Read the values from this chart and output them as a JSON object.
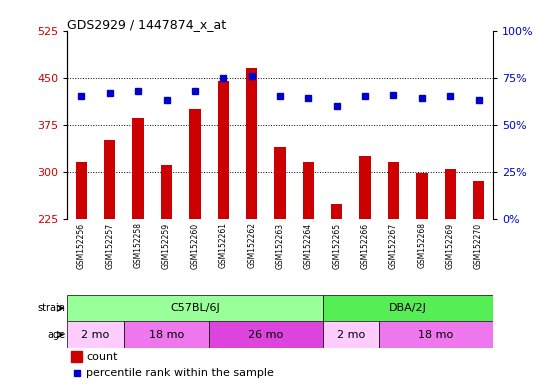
{
  "title": "GDS2929 / 1447874_x_at",
  "samples": [
    "GSM152256",
    "GSM152257",
    "GSM152258",
    "GSM152259",
    "GSM152260",
    "GSM152261",
    "GSM152262",
    "GSM152263",
    "GSM152264",
    "GSM152265",
    "GSM152266",
    "GSM152267",
    "GSM152268",
    "GSM152269",
    "GSM152270"
  ],
  "counts": [
    315,
    350,
    385,
    310,
    400,
    445,
    465,
    340,
    315,
    248,
    325,
    315,
    298,
    305,
    285
  ],
  "percentiles": [
    65,
    67,
    68,
    63,
    68,
    75,
    76,
    65,
    64,
    60,
    65,
    66,
    64,
    65,
    63
  ],
  "ylim_left": [
    225,
    525
  ],
  "ylim_right": [
    0,
    100
  ],
  "yticks_left": [
    225,
    300,
    375,
    450,
    525
  ],
  "yticks_right": [
    0,
    25,
    50,
    75,
    100
  ],
  "bar_color": "#cc0000",
  "dot_color": "#0000cc",
  "bar_bottom": 225,
  "strain_groups": [
    {
      "label": "C57BL/6J",
      "start": 0,
      "end": 9,
      "color": "#99ff99"
    },
    {
      "label": "DBA/2J",
      "start": 9,
      "end": 15,
      "color": "#55ee55"
    }
  ],
  "age_groups": [
    {
      "label": "2 mo",
      "start": 0,
      "end": 2,
      "color": "#ffccff"
    },
    {
      "label": "18 mo",
      "start": 2,
      "end": 5,
      "color": "#ee77ee"
    },
    {
      "label": "26 mo",
      "start": 5,
      "end": 9,
      "color": "#dd44dd"
    },
    {
      "label": "2 mo",
      "start": 9,
      "end": 11,
      "color": "#ffccff"
    },
    {
      "label": "18 mo",
      "start": 11,
      "end": 15,
      "color": "#ee77ee"
    }
  ],
  "bar_color_hex": "#cc0000",
  "dot_color_hex": "#0000cc",
  "bg_color": "#ffffff",
  "xticklabel_bg": "#cccccc",
  "grid_yticks": [
    300,
    375,
    450
  ]
}
